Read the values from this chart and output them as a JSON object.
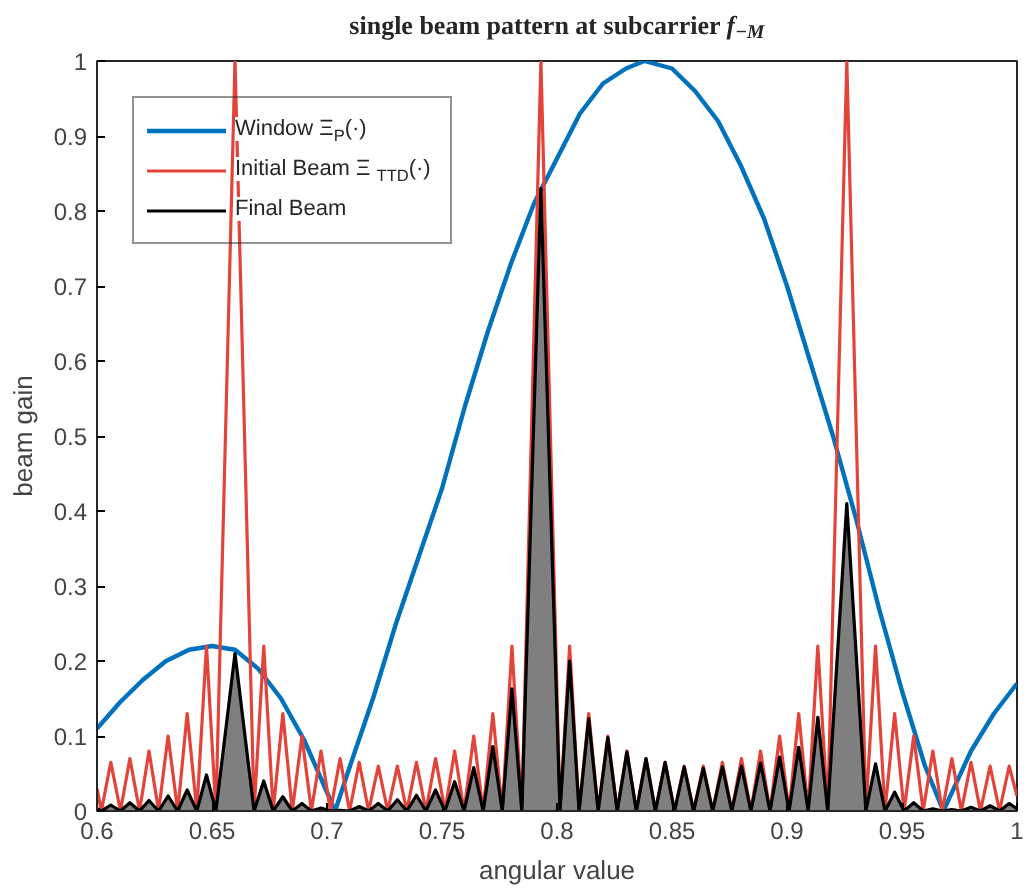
{
  "chart_data": {
    "type": "line",
    "title": "single beam pattern at subcarrier f$_{−M}$",
    "xlabel": "angular value",
    "ylabel": "beam gain",
    "xlim": [
      0.6,
      1
    ],
    "ylim": [
      0,
      1
    ],
    "xticks": [
      0.6,
      0.65,
      0.7,
      0.75,
      0.8,
      0.85,
      0.9,
      0.95,
      1
    ],
    "yticks": [
      0,
      0.1,
      0.2,
      0.3,
      0.4,
      0.5,
      0.6,
      0.7,
      0.8,
      0.9,
      1
    ],
    "grid": false,
    "legend": "top left",
    "series": [
      {
        "name": "Window Ξ$_{P}$(·)",
        "type": "line",
        "color": "#0072bd",
        "x": [
          0.6,
          0.61,
          0.62,
          0.63,
          0.64,
          0.65,
          0.66,
          0.67,
          0.68,
          0.69,
          0.7,
          0.7035,
          0.71,
          0.72,
          0.73,
          0.74,
          0.75,
          0.76,
          0.77,
          0.78,
          0.79,
          0.8,
          0.81,
          0.82,
          0.83,
          0.838,
          0.85,
          0.86,
          0.87,
          0.88,
          0.89,
          0.9,
          0.91,
          0.92,
          0.93,
          0.94,
          0.95,
          0.96,
          0.968,
          0.98,
          0.99,
          1.0
        ],
        "values": [
          0.11,
          0.145,
          0.175,
          0.2,
          0.215,
          0.22,
          0.215,
          0.19,
          0.15,
          0.095,
          0.025,
          0,
          0.06,
          0.15,
          0.25,
          0.34,
          0.43,
          0.54,
          0.64,
          0.73,
          0.81,
          0.87,
          0.93,
          0.97,
          0.99,
          1.0,
          0.99,
          0.96,
          0.92,
          0.86,
          0.79,
          0.7,
          0.6,
          0.5,
          0.39,
          0.27,
          0.16,
          0.06,
          0,
          0.08,
          0.13,
          0.17
        ]
      },
      {
        "name": "Initial Beam  Ξ$_{TTD}$(·)",
        "type": "line",
        "color": "#e3443a",
        "x": [
          0.6,
          0.6019,
          0.606,
          0.6102,
          0.6143,
          0.6185,
          0.6226,
          0.6268,
          0.6309,
          0.6351,
          0.6392,
          0.6434,
          0.6476,
          0.6517,
          0.66,
          0.6683,
          0.6725,
          0.6766,
          0.6808,
          0.6849,
          0.6891,
          0.6932,
          0.6974,
          0.7015,
          0.7057,
          0.7098,
          0.714,
          0.7181,
          0.7223,
          0.7264,
          0.7306,
          0.7347,
          0.7389,
          0.743,
          0.7472,
          0.7513,
          0.7555,
          0.7596,
          0.7638,
          0.7679,
          0.7721,
          0.7762,
          0.7804,
          0.7847,
          0.793,
          0.8013,
          0.8055,
          0.8096,
          0.8138,
          0.8179,
          0.8221,
          0.8262,
          0.8304,
          0.8345,
          0.8387,
          0.8428,
          0.847,
          0.8511,
          0.8553,
          0.8594,
          0.8636,
          0.8677,
          0.8719,
          0.876,
          0.8802,
          0.8843,
          0.8885,
          0.8926,
          0.8968,
          0.9009,
          0.9051,
          0.9092,
          0.9134,
          0.9177,
          0.926,
          0.9343,
          0.9385,
          0.9426,
          0.9468,
          0.9509,
          0.9551,
          0.9592,
          0.9634,
          0.9675,
          0.9717,
          0.9758,
          0.98,
          0.9841,
          0.9883,
          0.9924,
          0.9966,
          1.0
        ],
        "values": [
          0.03,
          0,
          0.065,
          0,
          0.07,
          0,
          0.08,
          0,
          0.1,
          0,
          0.13,
          0,
          0.22,
          0,
          1.0,
          0,
          0.22,
          0,
          0.13,
          0,
          0.1,
          0,
          0.08,
          0,
          0.07,
          0,
          0.065,
          0,
          0.06,
          0,
          0.06,
          0,
          0.065,
          0,
          0.07,
          0,
          0.08,
          0,
          0.1,
          0,
          0.13,
          0,
          0.22,
          0,
          1.0,
          0,
          0.22,
          0,
          0.13,
          0,
          0.1,
          0,
          0.08,
          0,
          0.07,
          0,
          0.065,
          0,
          0.06,
          0,
          0.06,
          0,
          0.065,
          0,
          0.07,
          0,
          0.08,
          0,
          0.1,
          0,
          0.13,
          0,
          0.22,
          0,
          1.0,
          0,
          0.22,
          0,
          0.13,
          0,
          0.1,
          0,
          0.08,
          0,
          0.07,
          0,
          0.065,
          0,
          0.06,
          0,
          0.06,
          0.02
        ]
      },
      {
        "name": "Final Beam",
        "type": "area",
        "color": "#000000",
        "x": [
          0.6,
          0.6019,
          0.606,
          0.6102,
          0.6143,
          0.6185,
          0.6226,
          0.6268,
          0.6309,
          0.6351,
          0.6392,
          0.6434,
          0.6476,
          0.6517,
          0.66,
          0.6683,
          0.6725,
          0.6766,
          0.6808,
          0.6849,
          0.6891,
          0.6932,
          0.6974,
          0.7015,
          0.7057,
          0.7098,
          0.714,
          0.7181,
          0.7223,
          0.7264,
          0.7306,
          0.7347,
          0.7389,
          0.743,
          0.7472,
          0.7513,
          0.7555,
          0.7596,
          0.7638,
          0.7679,
          0.7721,
          0.7762,
          0.7804,
          0.7847,
          0.793,
          0.8013,
          0.8055,
          0.8096,
          0.8138,
          0.8179,
          0.8221,
          0.8262,
          0.8304,
          0.8345,
          0.8387,
          0.8428,
          0.847,
          0.8511,
          0.8553,
          0.8594,
          0.8636,
          0.8677,
          0.8719,
          0.876,
          0.8802,
          0.8843,
          0.8885,
          0.8926,
          0.8968,
          0.9009,
          0.9051,
          0.9092,
          0.9134,
          0.9177,
          0.926,
          0.9343,
          0.9385,
          0.9426,
          0.9468,
          0.9509,
          0.9551,
          0.9592,
          0.9634,
          0.9675,
          0.9717,
          0.9758,
          0.98,
          0.9841,
          0.9883,
          0.9924,
          0.9966,
          1.0
        ],
        "values": [
          0.003,
          0,
          0.008,
          0,
          0.011,
          0,
          0.014,
          0,
          0.02,
          0,
          0.028,
          0,
          0.048,
          0,
          0.21,
          0,
          0.04,
          0,
          0.019,
          0,
          0.01,
          0,
          0.004,
          0,
          0.001,
          0,
          0.006,
          0,
          0.01,
          0,
          0.015,
          0,
          0.021,
          0,
          0.028,
          0,
          0.039,
          0,
          0.058,
          0,
          0.086,
          0,
          0.163,
          0,
          0.83,
          0,
          0.2,
          0,
          0.123,
          0,
          0.098,
          0,
          0.079,
          0,
          0.07,
          0,
          0.065,
          0,
          0.059,
          0,
          0.057,
          0,
          0.059,
          0,
          0.06,
          0,
          0.064,
          0,
          0.072,
          0,
          0.085,
          0,
          0.125,
          0,
          0.41,
          0,
          0.063,
          0,
          0.025,
          0,
          0.011,
          0,
          0.003,
          0,
          0.002,
          0,
          0.005,
          0,
          0.007,
          0,
          0.01,
          0.003
        ]
      }
    ]
  }
}
